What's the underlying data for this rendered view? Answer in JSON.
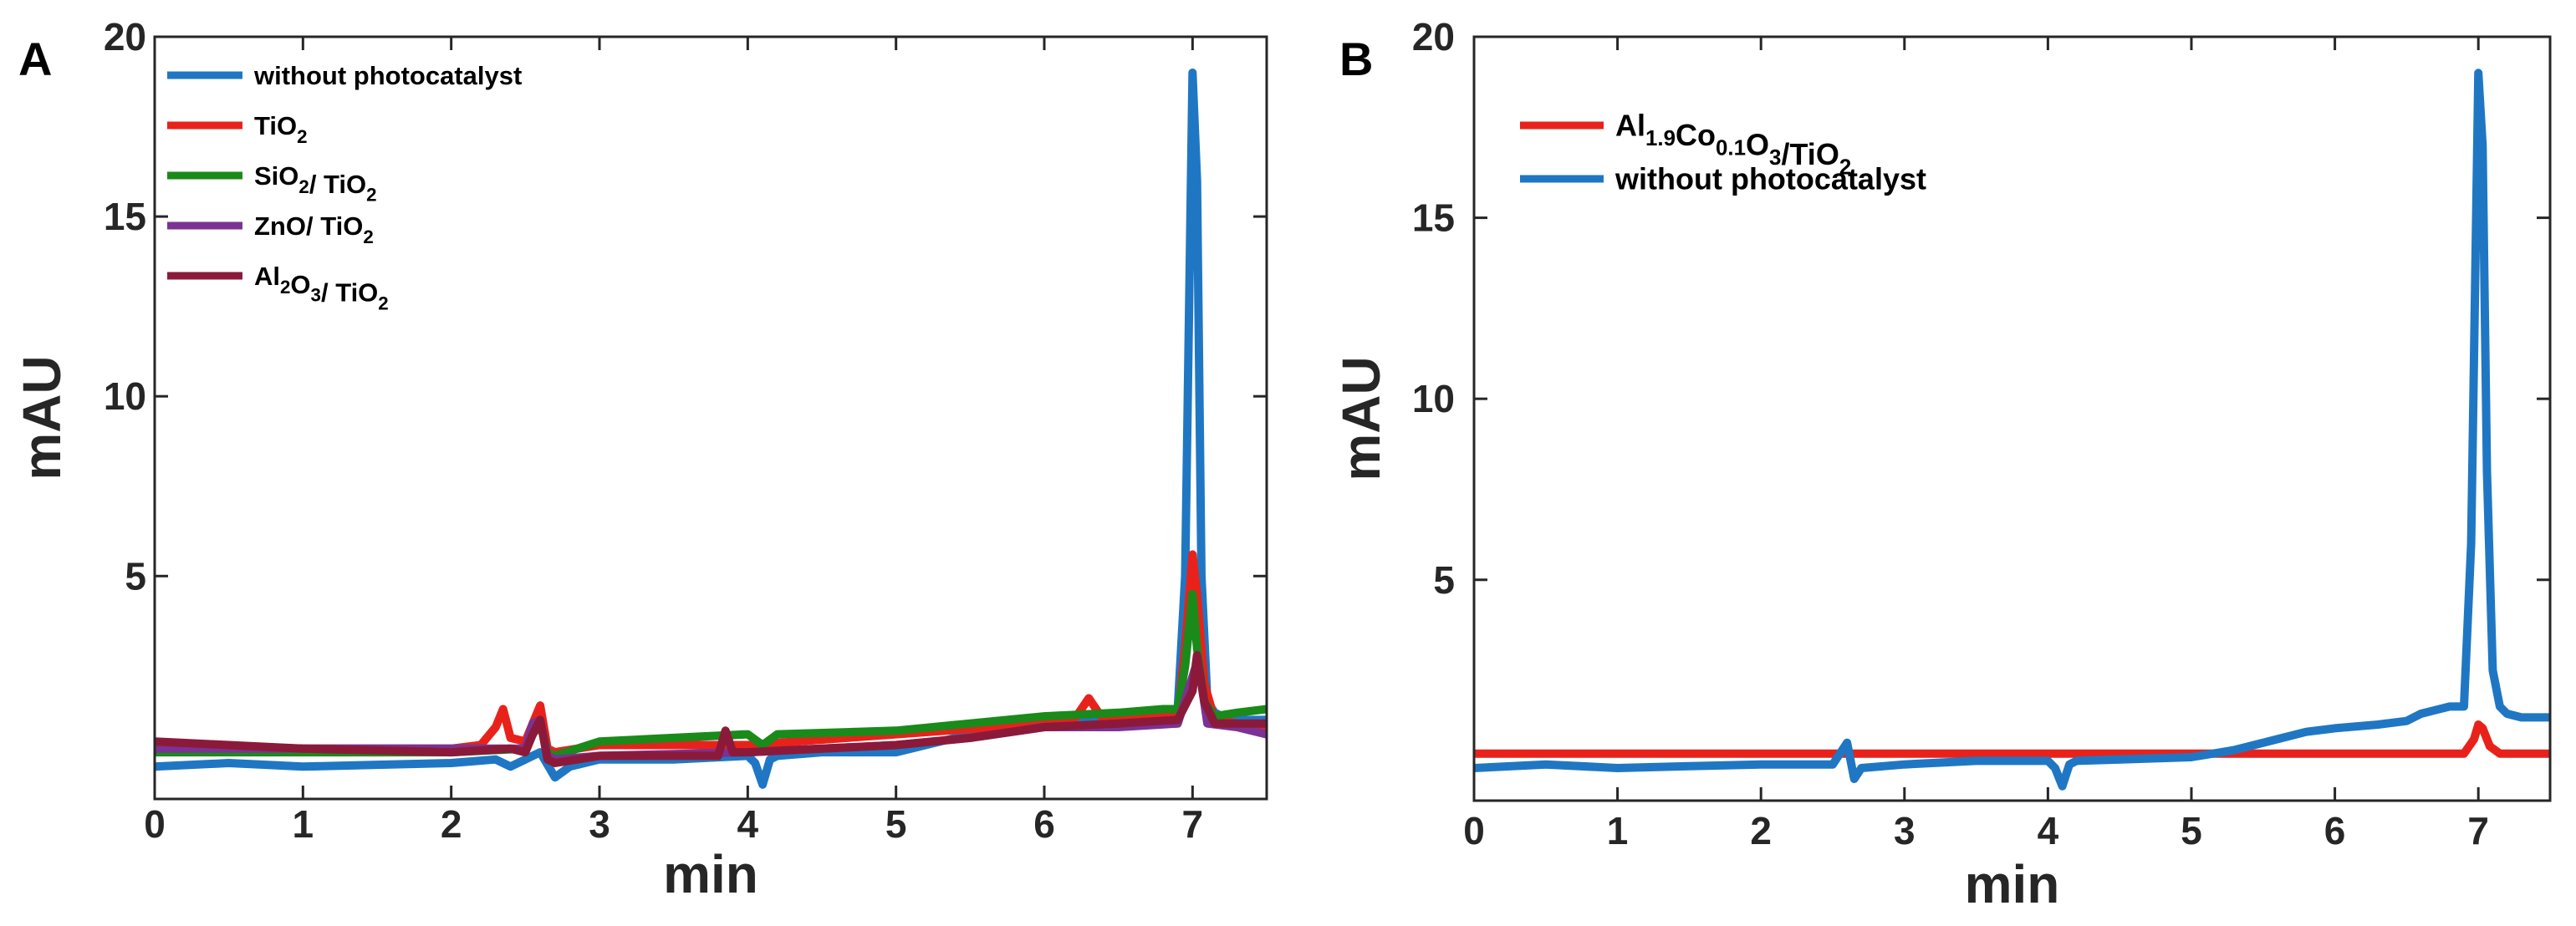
{
  "chart_data": [
    {
      "panel_label": "A",
      "type": "line",
      "xlabel": "min",
      "ylabel": "mAU",
      "xlim": [
        0,
        7.5
      ],
      "ylim": [
        -1.2,
        20
      ],
      "xticks": [
        0,
        1,
        2,
        3,
        4,
        5,
        6,
        7
      ],
      "xtick_labels": [
        "0",
        "1",
        "2",
        "3",
        "4",
        "5",
        "6",
        "7"
      ],
      "yticks": [
        5,
        10,
        15,
        20
      ],
      "ytick_labels": [
        "5",
        "10",
        "15",
        "20"
      ],
      "legend_position": "top-left",
      "series": [
        {
          "name": "without photocatalyst",
          "legend": {
            "parts": [
              {
                "t": "without photocatalyst"
              }
            ]
          },
          "color": "#1f77c4",
          "x": [
            0,
            0.5,
            1,
            1.5,
            2,
            2.3,
            2.4,
            2.5,
            2.6,
            2.7,
            2.8,
            3,
            3.5,
            4,
            4.05,
            4.1,
            4.15,
            4.2,
            4.5,
            5,
            5.3,
            5.6,
            6,
            6.5,
            6.8,
            6.9,
            6.95,
            7.0,
            7.03,
            7.06,
            7.1,
            7.15,
            7.2,
            7.3,
            7.5
          ],
          "y": [
            -0.3,
            -0.2,
            -0.3,
            -0.25,
            -0.2,
            -0.1,
            -0.3,
            -0.1,
            0.1,
            -0.6,
            -0.3,
            -0.1,
            -0.1,
            0.0,
            -0.2,
            -0.8,
            -0.1,
            0.0,
            0.1,
            0.1,
            0.4,
            0.7,
            0.9,
            1.0,
            1.1,
            1.3,
            5.0,
            19.0,
            16.0,
            5.0,
            1.5,
            1.2,
            1.1,
            1.0,
            1.0
          ]
        },
        {
          "name": "TiO2",
          "legend": {
            "parts": [
              {
                "t": "TiO"
              },
              {
                "t": "2",
                "sub": true
              }
            ]
          },
          "color": "#e8221b",
          "x": [
            0,
            1,
            2,
            2.2,
            2.3,
            2.35,
            2.4,
            2.5,
            2.6,
            2.65,
            2.7,
            3,
            4,
            5,
            6,
            6.2,
            6.3,
            6.4,
            6.5,
            6.9,
            6.95,
            7.0,
            7.03,
            7.08,
            7.15,
            7.3,
            7.5
          ],
          "y": [
            0.3,
            0.2,
            0.2,
            0.3,
            0.8,
            1.3,
            0.5,
            0.4,
            1.4,
            0.2,
            0.1,
            0.3,
            0.3,
            0.6,
            0.9,
            1.0,
            1.6,
            1.0,
            1.0,
            1.1,
            3.0,
            5.6,
            4.5,
            2.0,
            1.0,
            0.9,
            0.8
          ]
        },
        {
          "name": "SiO2/ TiO2",
          "legend": {
            "parts": [
              {
                "t": "SiO"
              },
              {
                "t": "2",
                "sub": true
              },
              {
                "t": "/ TiO"
              },
              {
                "t": "2",
                "sub": true
              }
            ]
          },
          "color": "#1a8a1a",
          "x": [
            0,
            1,
            2,
            2.5,
            2.55,
            2.6,
            2.65,
            2.7,
            3,
            4,
            4.1,
            4.2,
            5,
            5.5,
            6,
            6.5,
            6.8,
            6.9,
            6.95,
            7.0,
            7.03,
            7.08,
            7.15,
            7.3,
            7.5
          ],
          "y": [
            0.1,
            0.1,
            0.1,
            0.2,
            0.6,
            0.9,
            0.1,
            0.0,
            0.4,
            0.6,
            0.3,
            0.6,
            0.7,
            0.9,
            1.1,
            1.2,
            1.3,
            1.3,
            2.5,
            4.5,
            3.0,
            1.5,
            1.1,
            1.2,
            1.3
          ]
        },
        {
          "name": "ZnO/ TiO2",
          "legend": {
            "parts": [
              {
                "t": " ZnO/ TiO"
              },
              {
                "t": "2",
                "sub": true
              }
            ]
          },
          "color": "#7b3294",
          "x": [
            0,
            1,
            2,
            2.5,
            2.55,
            2.6,
            2.65,
            2.7,
            3,
            4,
            4.5,
            5,
            5.5,
            6,
            6.5,
            6.9,
            7.0,
            7.03,
            7.06,
            7.1,
            7.3,
            7.5
          ],
          "y": [
            0.2,
            0.2,
            0.2,
            0.2,
            0.9,
            1.0,
            0.0,
            -0.1,
            0.0,
            0.1,
            0.2,
            0.3,
            0.5,
            0.8,
            0.8,
            0.9,
            2.2,
            2.6,
            2.0,
            0.9,
            0.8,
            0.6
          ]
        },
        {
          "name": "Al2O3/ TiO2",
          "legend": {
            "parts": [
              {
                "t": "Al"
              },
              {
                "t": "2",
                "sub": true
              },
              {
                "t": "O"
              },
              {
                "t": "3",
                "sub": true
              },
              {
                "t": "/ TiO"
              },
              {
                "t": "2",
                "sub": true
              }
            ]
          },
          "color": "#8b1a3a",
          "x": [
            0,
            0.5,
            1,
            1.5,
            2,
            2.4,
            2.5,
            2.55,
            2.6,
            2.65,
            2.7,
            3,
            3.5,
            3.8,
            3.85,
            3.9,
            4,
            4.5,
            5,
            5.5,
            6,
            6.5,
            6.9,
            7.0,
            7.03,
            7.08,
            7.15,
            7.5
          ],
          "y": [
            0.4,
            0.3,
            0.2,
            0.15,
            0.1,
            0.2,
            0.1,
            0.6,
            1.0,
            -0.1,
            -0.2,
            0.0,
            0.0,
            0.0,
            0.7,
            0.1,
            0.1,
            0.2,
            0.3,
            0.5,
            0.8,
            0.9,
            1.0,
            1.8,
            2.8,
            1.5,
            0.9,
            0.9
          ]
        }
      ]
    },
    {
      "panel_label": "B",
      "type": "line",
      "xlabel": "min",
      "ylabel": "mAU",
      "xlim": [
        0,
        7.5
      ],
      "ylim": [
        -1.1,
        20
      ],
      "xticks": [
        0,
        1,
        2,
        3,
        4,
        5,
        6,
        7
      ],
      "xtick_labels": [
        "0",
        "1",
        "2",
        "3",
        "4",
        "5",
        "6",
        "7"
      ],
      "yticks": [
        5,
        10,
        15,
        20
      ],
      "ytick_labels": [
        "5",
        "10",
        "15",
        "20"
      ],
      "legend_position": "top-left",
      "series": [
        {
          "name": "Al1.9Co0.1O3/TiO2",
          "legend": {
            "parts": [
              {
                "t": "Al"
              },
              {
                "t": "1.9",
                "sub": true
              },
              {
                "t": "Co"
              },
              {
                "t": "0.1",
                "sub": true
              },
              {
                "t": "O"
              },
              {
                "t": "3",
                "sub": true
              },
              {
                "t": "/TiO"
              },
              {
                "t": "2",
                "sub": true
              }
            ]
          },
          "color": "#e8221b",
          "x": [
            0,
            1,
            2,
            3,
            4,
            5,
            6,
            6.9,
            6.97,
            7.0,
            7.03,
            7.08,
            7.15,
            7.3,
            7.5
          ],
          "y": [
            0.2,
            0.2,
            0.2,
            0.2,
            0.2,
            0.2,
            0.2,
            0.2,
            0.6,
            1.0,
            0.9,
            0.4,
            0.2,
            0.2,
            0.2
          ]
        },
        {
          "name": "without photocatalyst",
          "legend": {
            "parts": [
              {
                "t": "without photocatalyst"
              }
            ]
          },
          "color": "#1f77c4",
          "x": [
            0,
            0.5,
            1,
            1.5,
            2,
            2.5,
            2.55,
            2.6,
            2.65,
            2.7,
            3,
            3.5,
            4,
            4.05,
            4.1,
            4.15,
            4.2,
            5,
            5.3,
            5.6,
            5.8,
            6,
            6.3,
            6.5,
            6.6,
            6.7,
            6.8,
            6.9,
            6.95,
            7.0,
            7.03,
            7.06,
            7.1,
            7.15,
            7.2,
            7.3,
            7.5
          ],
          "y": [
            -0.2,
            -0.1,
            -0.2,
            -0.15,
            -0.1,
            -0.1,
            0.2,
            0.5,
            -0.5,
            -0.2,
            -0.1,
            0.0,
            0.0,
            -0.2,
            -0.7,
            -0.1,
            0.0,
            0.1,
            0.3,
            0.6,
            0.8,
            0.9,
            1.0,
            1.1,
            1.3,
            1.4,
            1.5,
            1.5,
            6.0,
            19.0,
            17.0,
            8.0,
            2.5,
            1.5,
            1.3,
            1.2,
            1.2
          ]
        }
      ]
    }
  ]
}
